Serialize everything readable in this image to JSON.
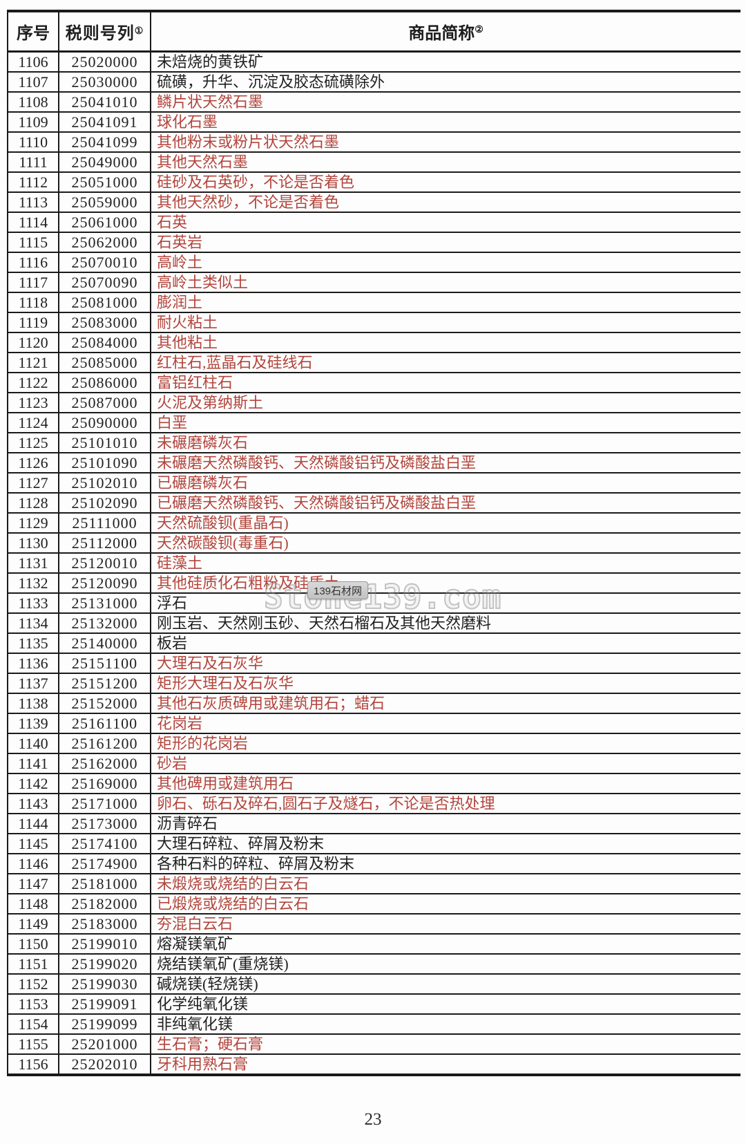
{
  "colors": {
    "red": "#b2453c",
    "black": "#1f1f1f",
    "border": "#1a1a1a"
  },
  "page": {
    "number": "23"
  },
  "watermark": {
    "badge": "139石材网",
    "text": "Stone139.com"
  },
  "table": {
    "headers": [
      {
        "label": "序号",
        "sup": ""
      },
      {
        "label": "税则号列",
        "sup": "①"
      },
      {
        "label": "商品简称",
        "sup": "②"
      }
    ],
    "rows": [
      {
        "no": "1106",
        "code": "25020000",
        "name": "未焙烧的黄铁矿",
        "red": false
      },
      {
        "no": "1107",
        "code": "25030000",
        "name": "硫磺，升华、沉淀及胶态硫磺除外",
        "red": false
      },
      {
        "no": "1108",
        "code": "25041010",
        "name": "鳞片状天然石墨",
        "red": true
      },
      {
        "no": "1109",
        "code": "25041091",
        "name": "球化石墨",
        "red": true
      },
      {
        "no": "1110",
        "code": "25041099",
        "name": "其他粉末或粉片状天然石墨",
        "red": true
      },
      {
        "no": "1111",
        "code": "25049000",
        "name": "其他天然石墨",
        "red": true
      },
      {
        "no": "1112",
        "code": "25051000",
        "name": "硅砂及石英砂，不论是否着色",
        "red": true
      },
      {
        "no": "1113",
        "code": "25059000",
        "name": "其他天然砂，不论是否着色",
        "red": true
      },
      {
        "no": "1114",
        "code": "25061000",
        "name": "石英",
        "red": true
      },
      {
        "no": "1115",
        "code": "25062000",
        "name": "石英岩",
        "red": true
      },
      {
        "no": "1116",
        "code": "25070010",
        "name": "高岭土",
        "red": true
      },
      {
        "no": "1117",
        "code": "25070090",
        "name": "高岭土类似土",
        "red": true
      },
      {
        "no": "1118",
        "code": "25081000",
        "name": "膨润土",
        "red": true
      },
      {
        "no": "1119",
        "code": "25083000",
        "name": "耐火粘土",
        "red": true
      },
      {
        "no": "1120",
        "code": "25084000",
        "name": "其他粘土",
        "red": true
      },
      {
        "no": "1121",
        "code": "25085000",
        "name": "红柱石,蓝晶石及硅线石",
        "red": true
      },
      {
        "no": "1122",
        "code": "25086000",
        "name": "富铝红柱石",
        "red": true
      },
      {
        "no": "1123",
        "code": "25087000",
        "name": "火泥及第纳斯土",
        "red": true
      },
      {
        "no": "1124",
        "code": "25090000",
        "name": "白垩",
        "red": true
      },
      {
        "no": "1125",
        "code": "25101010",
        "name": "未碾磨磷灰石",
        "red": true
      },
      {
        "no": "1126",
        "code": "25101090",
        "name": "未碾磨天然磷酸钙、天然磷酸铝钙及磷酸盐白垩",
        "red": true
      },
      {
        "no": "1127",
        "code": "25102010",
        "name": "已碾磨磷灰石",
        "red": true
      },
      {
        "no": "1128",
        "code": "25102090",
        "name": "已碾磨天然磷酸钙、天然磷酸铝钙及磷酸盐白垩",
        "red": true
      },
      {
        "no": "1129",
        "code": "25111000",
        "name": "天然硫酸钡(重晶石)",
        "red": true
      },
      {
        "no": "1130",
        "code": "25112000",
        "name": "天然碳酸钡(毒重石)",
        "red": true
      },
      {
        "no": "1131",
        "code": "25120010",
        "name": "硅藻土",
        "red": true
      },
      {
        "no": "1132",
        "code": "25120090",
        "name": "其他硅质化石粗粉及硅质土",
        "red": true
      },
      {
        "no": "1133",
        "code": "25131000",
        "name": "浮石",
        "red": false
      },
      {
        "no": "1134",
        "code": "25132000",
        "name": "刚玉岩、天然刚玉砂、天然石榴石及其他天然磨料",
        "red": false
      },
      {
        "no": "1135",
        "code": "25140000",
        "name": "板岩",
        "red": false
      },
      {
        "no": "1136",
        "code": "25151100",
        "name": "大理石及石灰华",
        "red": true
      },
      {
        "no": "1137",
        "code": "25151200",
        "name": "矩形大理石及石灰华",
        "red": true
      },
      {
        "no": "1138",
        "code": "25152000",
        "name": "其他石灰质碑用或建筑用石；蜡石",
        "red": true
      },
      {
        "no": "1139",
        "code": "25161100",
        "name": "花岗岩",
        "red": true
      },
      {
        "no": "1140",
        "code": "25161200",
        "name": "矩形的花岗岩",
        "red": true
      },
      {
        "no": "1141",
        "code": "25162000",
        "name": "砂岩",
        "red": true
      },
      {
        "no": "1142",
        "code": "25169000",
        "name": "其他碑用或建筑用石",
        "red": true
      },
      {
        "no": "1143",
        "code": "25171000",
        "name": "卵石、砾石及碎石,圆石子及燧石，不论是否热处理",
        "red": true
      },
      {
        "no": "1144",
        "code": "25173000",
        "name": "沥青碎石",
        "red": false
      },
      {
        "no": "1145",
        "code": "25174100",
        "name": "大理石碎粒、碎屑及粉末",
        "red": false
      },
      {
        "no": "1146",
        "code": "25174900",
        "name": "各种石料的碎粒、碎屑及粉末",
        "red": false
      },
      {
        "no": "1147",
        "code": "25181000",
        "name": "未煅烧或烧结的白云石",
        "red": true
      },
      {
        "no": "1148",
        "code": "25182000",
        "name": "已煅烧或烧结的白云石",
        "red": true
      },
      {
        "no": "1149",
        "code": "25183000",
        "name": "夯混白云石",
        "red": true
      },
      {
        "no": "1150",
        "code": "25199010",
        "name": "熔凝镁氧矿",
        "red": false
      },
      {
        "no": "1151",
        "code": "25199020",
        "name": "烧结镁氧矿(重烧镁)",
        "red": false
      },
      {
        "no": "1152",
        "code": "25199030",
        "name": "碱烧镁(轻烧镁)",
        "red": false
      },
      {
        "no": "1153",
        "code": "25199091",
        "name": "化学纯氧化镁",
        "red": false
      },
      {
        "no": "1154",
        "code": "25199099",
        "name": "非纯氧化镁",
        "red": false
      },
      {
        "no": "1155",
        "code": "25201000",
        "name": "生石膏；硬石膏",
        "red": true
      },
      {
        "no": "1156",
        "code": "25202010",
        "name": "牙科用熟石膏",
        "red": true
      }
    ]
  }
}
